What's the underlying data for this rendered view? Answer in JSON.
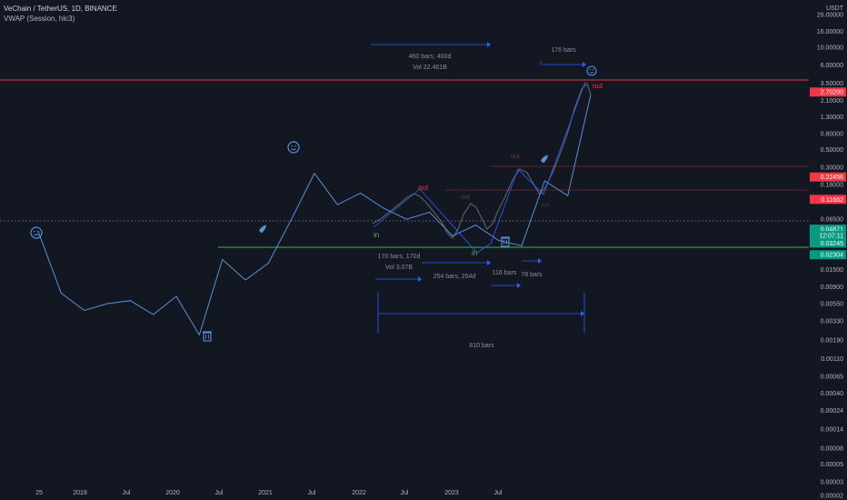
{
  "header": {
    "symbol_line": "VeChain / TetherUS, 1D, BINANCE",
    "indicator_line": "VWAP (Session, hlc3)"
  },
  "price_scale": {
    "currency": "USDT",
    "ticks": [
      "26.00000",
      "16.00000",
      "10.00000",
      "6.00000",
      "3.50000",
      "2.10000",
      "1.30000",
      "0.80000",
      "0.50000",
      "0.30000",
      "0.18000",
      "0.06500",
      "0.01500",
      "0.00900",
      "0.00550",
      "0.00330",
      "0.00190",
      "0.00110",
      "0.00065",
      "0.00040",
      "0.00024",
      "0.00014",
      "0.00008",
      "0.00005",
      "0.00003",
      "0.00002"
    ],
    "badges": [
      {
        "label": "2.70200",
        "value": 2.702,
        "bg": "#f23645",
        "fg": "#ffffff"
      },
      {
        "label": "0.22456",
        "value": 0.22456,
        "bg": "#f23645",
        "fg": "#ffffff"
      },
      {
        "label": "0.11662",
        "value": 0.11662,
        "bg": "#f23645",
        "fg": "#ffffff"
      },
      {
        "label": "0.04871",
        "value": 0.04871,
        "bg": "#089981",
        "fg": "#ffffff"
      },
      {
        "label": "12:07:11",
        "value": 0.0405,
        "bg": "#089981",
        "fg": "#ffffff"
      },
      {
        "label": "0.03245",
        "value": 0.03245,
        "bg": "#089981",
        "fg": "#ffffff"
      },
      {
        "label": "0.02304",
        "value": 0.02304,
        "bg": "#089981",
        "fg": "#ffffff"
      }
    ]
  },
  "time_axis": [
    "25",
    "2019",
    "Jul",
    "2020",
    "Jul",
    "2021",
    "Jul",
    "2022",
    "Jul",
    "2023",
    "Jul"
  ],
  "annotations": {
    "range_top": {
      "bars": "460 bars, 460d",
      "vol": "Vol 22.461B"
    },
    "range_top_right": "176 bars",
    "range_mid": {
      "bars": "170 bars, 170d",
      "vol": "Vol 3.07B"
    },
    "range_254": "254 bars, 254d",
    "range_116": "116 bars",
    "range_78": "78 bars",
    "range_810": "810 bars",
    "labels_in": [
      "in",
      "in"
    ],
    "labels_out": [
      "out",
      "out",
      "out",
      "out",
      "out"
    ]
  },
  "colors": {
    "background": "#131722",
    "price_line": "#5b8fd6",
    "candle_hist": "#787b86",
    "resistance": "#f23645",
    "support": "#4caf50",
    "arrow": "#2962ff",
    "current": "#5d606b"
  },
  "chart_data": {
    "type": "line",
    "title": "VeChain / TetherUS, 1D, BINANCE",
    "yscale": "log",
    "ylim": [
      2e-05,
      26
    ],
    "x": [
      "2018-09",
      "2018-11",
      "2019-01",
      "2019-04",
      "2019-07",
      "2019-10",
      "2020-01",
      "2020-03",
      "2020-06",
      "2020-09",
      "2020-12",
      "2021-02",
      "2021-04",
      "2021-06",
      "2021-09",
      "2021-12",
      "2022-03",
      "2022-06",
      "2022-09",
      "2022-12",
      "2023-03",
      "2023-06",
      "2023-09",
      "2023-12",
      "2024-03"
    ],
    "series": [
      {
        "values": [
          0.0455,
          0.0075,
          0.0045,
          0.0055,
          0.006,
          0.004,
          0.0068,
          0.0022,
          0.02,
          0.011,
          0.018,
          0.065,
          0.25,
          0.1,
          0.14,
          0.09,
          0.065,
          0.08,
          0.04,
          0.055,
          0.035,
          0.03,
          0.2,
          0.13,
          2.5
        ]
      }
    ],
    "levels": {
      "resistance": 2.702,
      "support": 0.02304
    }
  }
}
